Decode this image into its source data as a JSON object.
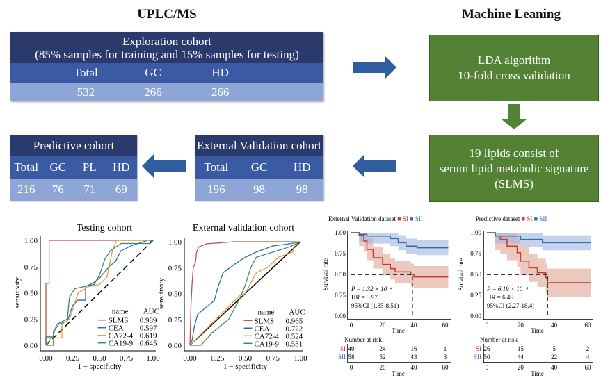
{
  "flow": {
    "left_title": "UPLC/MS",
    "right_title": "Machine Leaning",
    "exploration": {
      "title": "Exploration cohort",
      "subtitle": "(85% samples for training and 15% samples for testing)",
      "headers": [
        "Total",
        "GC",
        "HD"
      ],
      "values": [
        "532",
        "266",
        "266"
      ]
    },
    "lda": {
      "line1": "LDA algorithm",
      "line2": "10-fold cross validation"
    },
    "signature": {
      "line1": "19 lipids consist of",
      "line2": "serum lipid metabolic signature",
      "line3": "(SLMS)"
    },
    "external": {
      "title": "External Validation cohort",
      "headers": [
        "Total",
        "GC",
        "HD"
      ],
      "values": [
        "196",
        "98",
        "98"
      ]
    },
    "predictive": {
      "title": "Predictive cohort",
      "headers": [
        "Total",
        "GC",
        "PL",
        "HD"
      ],
      "values": [
        "216",
        "76",
        "71",
        "69"
      ]
    },
    "colors": {
      "navy": "#2b3a6c",
      "mid_blue": "#3a5ba3",
      "light_blue": "#8ea6d6",
      "green": "#548235",
      "arrow_blue": "#2f5d9f"
    }
  },
  "chart_data": [
    {
      "type": "line",
      "title": "Testing cohort",
      "xlabel": "1 − specificity",
      "ylabel": "sensitivity",
      "xlim": [
        0,
        1
      ],
      "ylim": [
        0,
        1
      ],
      "xticks": [
        "0.00",
        "0.25",
        "0.50",
        "0.75",
        "1.00"
      ],
      "yticks": [
        "0.00",
        "0.25",
        "0.50",
        "0.75",
        "1.00"
      ],
      "legend": {
        "placement": "bottom-right",
        "name_header": "name",
        "auc_header": "AUC"
      },
      "series": [
        {
          "name": "SLMS",
          "auc": "0.989",
          "color": "#c0504d",
          "points": [
            [
              0,
              0
            ],
            [
              0,
              0.59
            ],
            [
              0.03,
              0.59
            ],
            [
              0.03,
              1
            ],
            [
              1,
              1
            ]
          ]
        },
        {
          "name": "CEA",
          "auc": "0.597",
          "color": "#2f6f9f",
          "points": [
            [
              0,
              0
            ],
            [
              0,
              0.08
            ],
            [
              0.07,
              0.08
            ],
            [
              0.07,
              0.13
            ],
            [
              0.12,
              0.2
            ],
            [
              0.2,
              0.23
            ],
            [
              0.25,
              0.38
            ],
            [
              0.3,
              0.43
            ],
            [
              0.37,
              0.43
            ],
            [
              0.37,
              0.56
            ],
            [
              0.45,
              0.6
            ],
            [
              0.5,
              0.64
            ],
            [
              0.55,
              0.7
            ],
            [
              0.6,
              0.76
            ],
            [
              0.65,
              0.8
            ],
            [
              0.7,
              0.9
            ],
            [
              0.8,
              0.95
            ],
            [
              0.95,
              1
            ],
            [
              1,
              1
            ]
          ]
        },
        {
          "name": "CA72-4",
          "auc": "0.619",
          "color": "#e0a040",
          "points": [
            [
              0,
              0
            ],
            [
              0.05,
              0.07
            ],
            [
              0.15,
              0.07
            ],
            [
              0.15,
              0.2
            ],
            [
              0.22,
              0.25
            ],
            [
              0.27,
              0.4
            ],
            [
              0.3,
              0.5
            ],
            [
              0.4,
              0.56
            ],
            [
              0.5,
              0.58
            ],
            [
              0.57,
              0.65
            ],
            [
              0.62,
              0.9
            ],
            [
              0.66,
              1
            ],
            [
              1,
              1
            ]
          ]
        },
        {
          "name": "CA19-9",
          "auc": "0.645",
          "color": "#3a8a6a",
          "points": [
            [
              0,
              0
            ],
            [
              0.07,
              0
            ],
            [
              0.07,
              0.1
            ],
            [
              0.1,
              0.2
            ],
            [
              0.2,
              0.25
            ],
            [
              0.22,
              0.46
            ],
            [
              0.27,
              0.54
            ],
            [
              0.45,
              0.58
            ],
            [
              0.5,
              0.67
            ],
            [
              0.55,
              0.82
            ],
            [
              0.6,
              0.9
            ],
            [
              0.7,
              0.97
            ],
            [
              0.97,
              0.97
            ],
            [
              0.98,
              1
            ],
            [
              1,
              1
            ]
          ]
        }
      ]
    },
    {
      "type": "line",
      "title": "External validation cohort",
      "xlabel": "1 − specificity",
      "ylabel": "sensitivity",
      "xlim": [
        0,
        1
      ],
      "ylim": [
        0,
        1
      ],
      "xticks": [
        "0.00",
        "0.25",
        "0.50",
        "0.75",
        "1.00"
      ],
      "yticks": [
        "0.00",
        "0.25",
        "0.50",
        "0.75",
        "1.00"
      ],
      "legend": {
        "placement": "bottom-right",
        "name_header": "name",
        "auc_header": "AUC"
      },
      "series": [
        {
          "name": "SLMS",
          "auc": "0.965",
          "color": "#c0504d",
          "points": [
            [
              0,
              0
            ],
            [
              0.01,
              0.4
            ],
            [
              0.02,
              0.6
            ],
            [
              0.03,
              0.75
            ],
            [
              0.05,
              0.8
            ],
            [
              0.06,
              0.9
            ],
            [
              0.08,
              0.95
            ],
            [
              0.15,
              0.98
            ],
            [
              0.4,
              1
            ],
            [
              1,
              1
            ]
          ]
        },
        {
          "name": "CEA",
          "auc": "0.722",
          "color": "#2f6f9f",
          "points": [
            [
              0,
              0
            ],
            [
              0.02,
              0.05
            ],
            [
              0.04,
              0.18
            ],
            [
              0.07,
              0.3
            ],
            [
              0.15,
              0.37
            ],
            [
              0.22,
              0.43
            ],
            [
              0.25,
              0.55
            ],
            [
              0.3,
              0.7
            ],
            [
              0.4,
              0.78
            ],
            [
              0.5,
              0.85
            ],
            [
              0.6,
              0.9
            ],
            [
              0.75,
              0.96
            ],
            [
              0.9,
              0.98
            ],
            [
              1,
              1
            ]
          ]
        },
        {
          "name": "CA72-4",
          "auc": "0.524",
          "color": "#e0a040",
          "points": [
            [
              0,
              0
            ],
            [
              0.3,
              0.32
            ],
            [
              0.45,
              0.48
            ],
            [
              0.5,
              0.5
            ],
            [
              0.55,
              0.6
            ],
            [
              0.6,
              0.7
            ],
            [
              0.7,
              0.75
            ],
            [
              0.8,
              0.85
            ],
            [
              0.93,
              0.9
            ],
            [
              0.95,
              1
            ],
            [
              1,
              1
            ]
          ]
        },
        {
          "name": "CA19-9",
          "auc": "0.531",
          "color": "#3a8a6a",
          "points": [
            [
              0,
              0
            ],
            [
              0.1,
              0
            ],
            [
              0.2,
              0.12
            ],
            [
              0.35,
              0.25
            ],
            [
              0.45,
              0.45
            ],
            [
              0.5,
              0.58
            ],
            [
              0.55,
              0.75
            ],
            [
              0.6,
              0.85
            ],
            [
              0.75,
              0.9
            ],
            [
              0.9,
              0.95
            ],
            [
              1,
              1
            ]
          ]
        }
      ]
    },
    {
      "type": "line",
      "title": "External Validation dataset",
      "legend_labels": [
        "SI",
        "SII"
      ],
      "xlabel": "Time",
      "ylabel": "Survival rate",
      "xlim": [
        0,
        62
      ],
      "ylim": [
        0,
        1
      ],
      "xticks": [
        "0",
        "20",
        "40",
        "60"
      ],
      "yticks": [
        "0.00",
        "0.25",
        "0.50",
        "0.75",
        "1.00"
      ],
      "median_line": {
        "y": 0.5,
        "x": 39
      },
      "annotation": {
        "p": "P = 1.32 × 10⁻⁴",
        "hr": "HR = 3.97",
        "ci": "95%CI (1.85-8.51)"
      },
      "series": [
        {
          "name": "SI",
          "color": "#c0392b",
          "band": "#e0a593",
          "steps": [
            [
              0,
              1
            ],
            [
              5,
              0.97
            ],
            [
              8,
              0.9
            ],
            [
              10,
              0.8
            ],
            [
              14,
              0.7
            ],
            [
              20,
              0.62
            ],
            [
              25,
              0.57
            ],
            [
              28,
              0.53
            ],
            [
              38,
              0.5
            ],
            [
              40,
              0.47
            ],
            [
              62,
              0.47
            ]
          ],
          "ci": 0.13
        },
        {
          "name": "SII",
          "color": "#2e6db4",
          "band": "#9fb4dc",
          "steps": [
            [
              0,
              1
            ],
            [
              5,
              0.98
            ],
            [
              10,
              0.96
            ],
            [
              25,
              0.93
            ],
            [
              30,
              0.88
            ],
            [
              35,
              0.84
            ],
            [
              42,
              0.82
            ],
            [
              62,
              0.82
            ]
          ],
          "ci": 0.09
        }
      ],
      "risk_table": {
        "title": "Number at risk",
        "xlabel": "Time",
        "rows": [
          {
            "label": "SI",
            "values": [
              "40",
              "24",
              "16",
              "1"
            ]
          },
          {
            "label": "SII",
            "values": [
              "58",
              "52",
              "43",
              "3"
            ]
          }
        ]
      }
    },
    {
      "type": "line",
      "title": "Predictive dataset",
      "legend_labels": [
        "SI",
        "SII"
      ],
      "xlabel": "Time",
      "ylabel": "Survival rate",
      "xlim": [
        0,
        62
      ],
      "ylim": [
        0,
        1
      ],
      "xticks": [
        "0",
        "20",
        "40",
        "60"
      ],
      "yticks": [
        "0.00",
        "0.25",
        "0.50",
        "0.75",
        "1.00"
      ],
      "median_line": {
        "y": 0.5,
        "x": 36
      },
      "annotation": {
        "p": "P = 6.19 × 10⁻⁵",
        "hr": "HR = 6.46",
        "ci": "95%CI (2.27-18.4)"
      },
      "series": [
        {
          "name": "SI",
          "color": "#c0392b",
          "band": "#e0a593",
          "steps": [
            [
              0,
              1
            ],
            [
              5,
              0.96
            ],
            [
              8,
              0.92
            ],
            [
              12,
              0.84
            ],
            [
              18,
              0.76
            ],
            [
              20,
              0.66
            ],
            [
              25,
              0.58
            ],
            [
              30,
              0.52
            ],
            [
              35,
              0.46
            ],
            [
              36,
              0.4
            ],
            [
              62,
              0.4
            ]
          ],
          "ci": 0.17
        },
        {
          "name": "SII",
          "color": "#2e6db4",
          "band": "#9fb4dc",
          "steps": [
            [
              0,
              1
            ],
            [
              5,
              0.96
            ],
            [
              20,
              0.92
            ],
            [
              33,
              0.88
            ],
            [
              62,
              0.88
            ]
          ],
          "ci": 0.09
        }
      ],
      "risk_table": {
        "title": "Number at risk",
        "xlabel": "Time",
        "rows": [
          {
            "label": "SI",
            "values": [
              "26",
              "15",
              "5",
              "2"
            ]
          },
          {
            "label": "SII",
            "values": [
              "50",
              "44",
              "22",
              "4"
            ]
          }
        ]
      }
    }
  ]
}
